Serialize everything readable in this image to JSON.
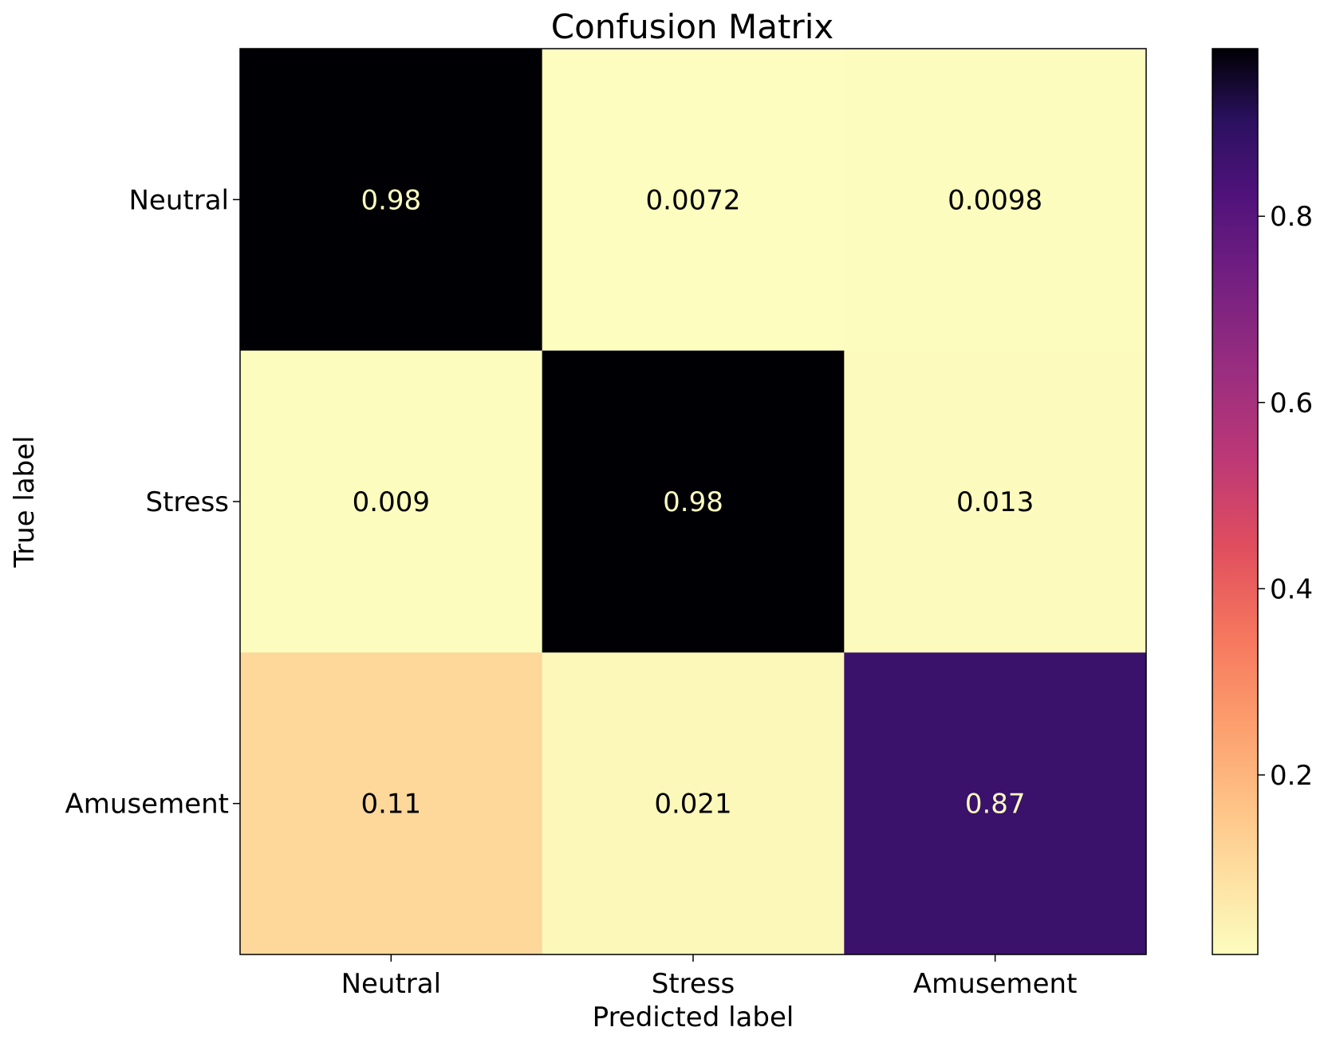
{
  "chart_data": {
    "type": "heatmap",
    "title": "Confusion Matrix",
    "xlabel": "Predicted label",
    "ylabel": "True label",
    "x_categories": [
      "Neutral",
      "Stress",
      "Amusement"
    ],
    "y_categories": [
      "Neutral",
      "Stress",
      "Amusement"
    ],
    "values": [
      [
        0.98,
        0.0072,
        0.0098
      ],
      [
        0.009,
        0.98,
        0.013
      ],
      [
        0.11,
        0.021,
        0.87
      ]
    ],
    "cell_labels": [
      [
        "0.98",
        "0.0072",
        "0.0098"
      ],
      [
        "0.009",
        "0.98",
        "0.013"
      ],
      [
        "0.11",
        "0.021",
        "0.87"
      ]
    ],
    "colormap": "magma_r",
    "vmin": 0.0072,
    "vmax": 0.98,
    "colorbar_ticks": [
      0.2,
      0.4,
      0.6,
      0.8
    ],
    "colorbar_tick_labels": [
      "0.2",
      "0.4",
      "0.6",
      "0.8"
    ],
    "grid": false
  }
}
